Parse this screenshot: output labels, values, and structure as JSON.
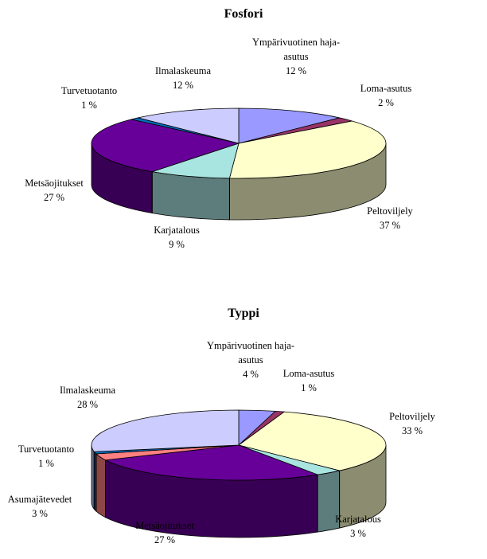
{
  "chart_data": [
    {
      "type": "pie",
      "title": "Fosfori",
      "slices": [
        {
          "label_lines": [
            "Ympärivuotinen haja-",
            "asutus"
          ],
          "pct": "12 %",
          "value": 12,
          "color": "#9999ff"
        },
        {
          "label_lines": [
            "Loma-asutus"
          ],
          "pct": "2 %",
          "value": 2,
          "color": "#993366"
        },
        {
          "label_lines": [
            "Peltoviljely"
          ],
          "pct": "37 %",
          "value": 37,
          "color": "#ffffcc"
        },
        {
          "label_lines": [
            "Karjatalous"
          ],
          "pct": "9 %",
          "value": 9,
          "color": "#a8e4e0"
        },
        {
          "label_lines": [
            "Metsäojitukset"
          ],
          "pct": "27 %",
          "value": 27,
          "color": "#660099"
        },
        {
          "label_lines": [
            "Turvetuotanto"
          ],
          "pct": "1 %",
          "value": 1,
          "color": "#0070c0"
        },
        {
          "label_lines": [
            "Ilmalaskeuma"
          ],
          "pct": "12 %",
          "value": 12,
          "color": "#ccccff"
        }
      ]
    },
    {
      "type": "pie",
      "title": "Typpi",
      "slices": [
        {
          "label_lines": [
            "Ympärivuotinen haja-",
            "asutus"
          ],
          "pct": "4 %",
          "value": 4,
          "color": "#9999ff"
        },
        {
          "label_lines": [
            "Loma-asutus"
          ],
          "pct": "1 %",
          "value": 1,
          "color": "#993366"
        },
        {
          "label_lines": [
            "Peltoviljely"
          ],
          "pct": "33 %",
          "value": 33,
          "color": "#ffffcc"
        },
        {
          "label_lines": [
            "Karjatalous"
          ],
          "pct": "3 %",
          "value": 3,
          "color": "#a8e4e0"
        },
        {
          "label_lines": [
            "Metsäojitukset"
          ],
          "pct": "27 %",
          "value": 27,
          "color": "#660099"
        },
        {
          "label_lines": [
            "Asumajätevedet"
          ],
          "pct": "3 %",
          "value": 3,
          "color": "#ff8080"
        },
        {
          "label_lines": [
            "Turvetuotanto"
          ],
          "pct": "1 %",
          "value": 1,
          "color": "#0070c0"
        },
        {
          "label_lines": [
            "Ilmalaskeuma"
          ],
          "pct": "28 %",
          "value": 28,
          "color": "#ccccff"
        }
      ]
    }
  ]
}
